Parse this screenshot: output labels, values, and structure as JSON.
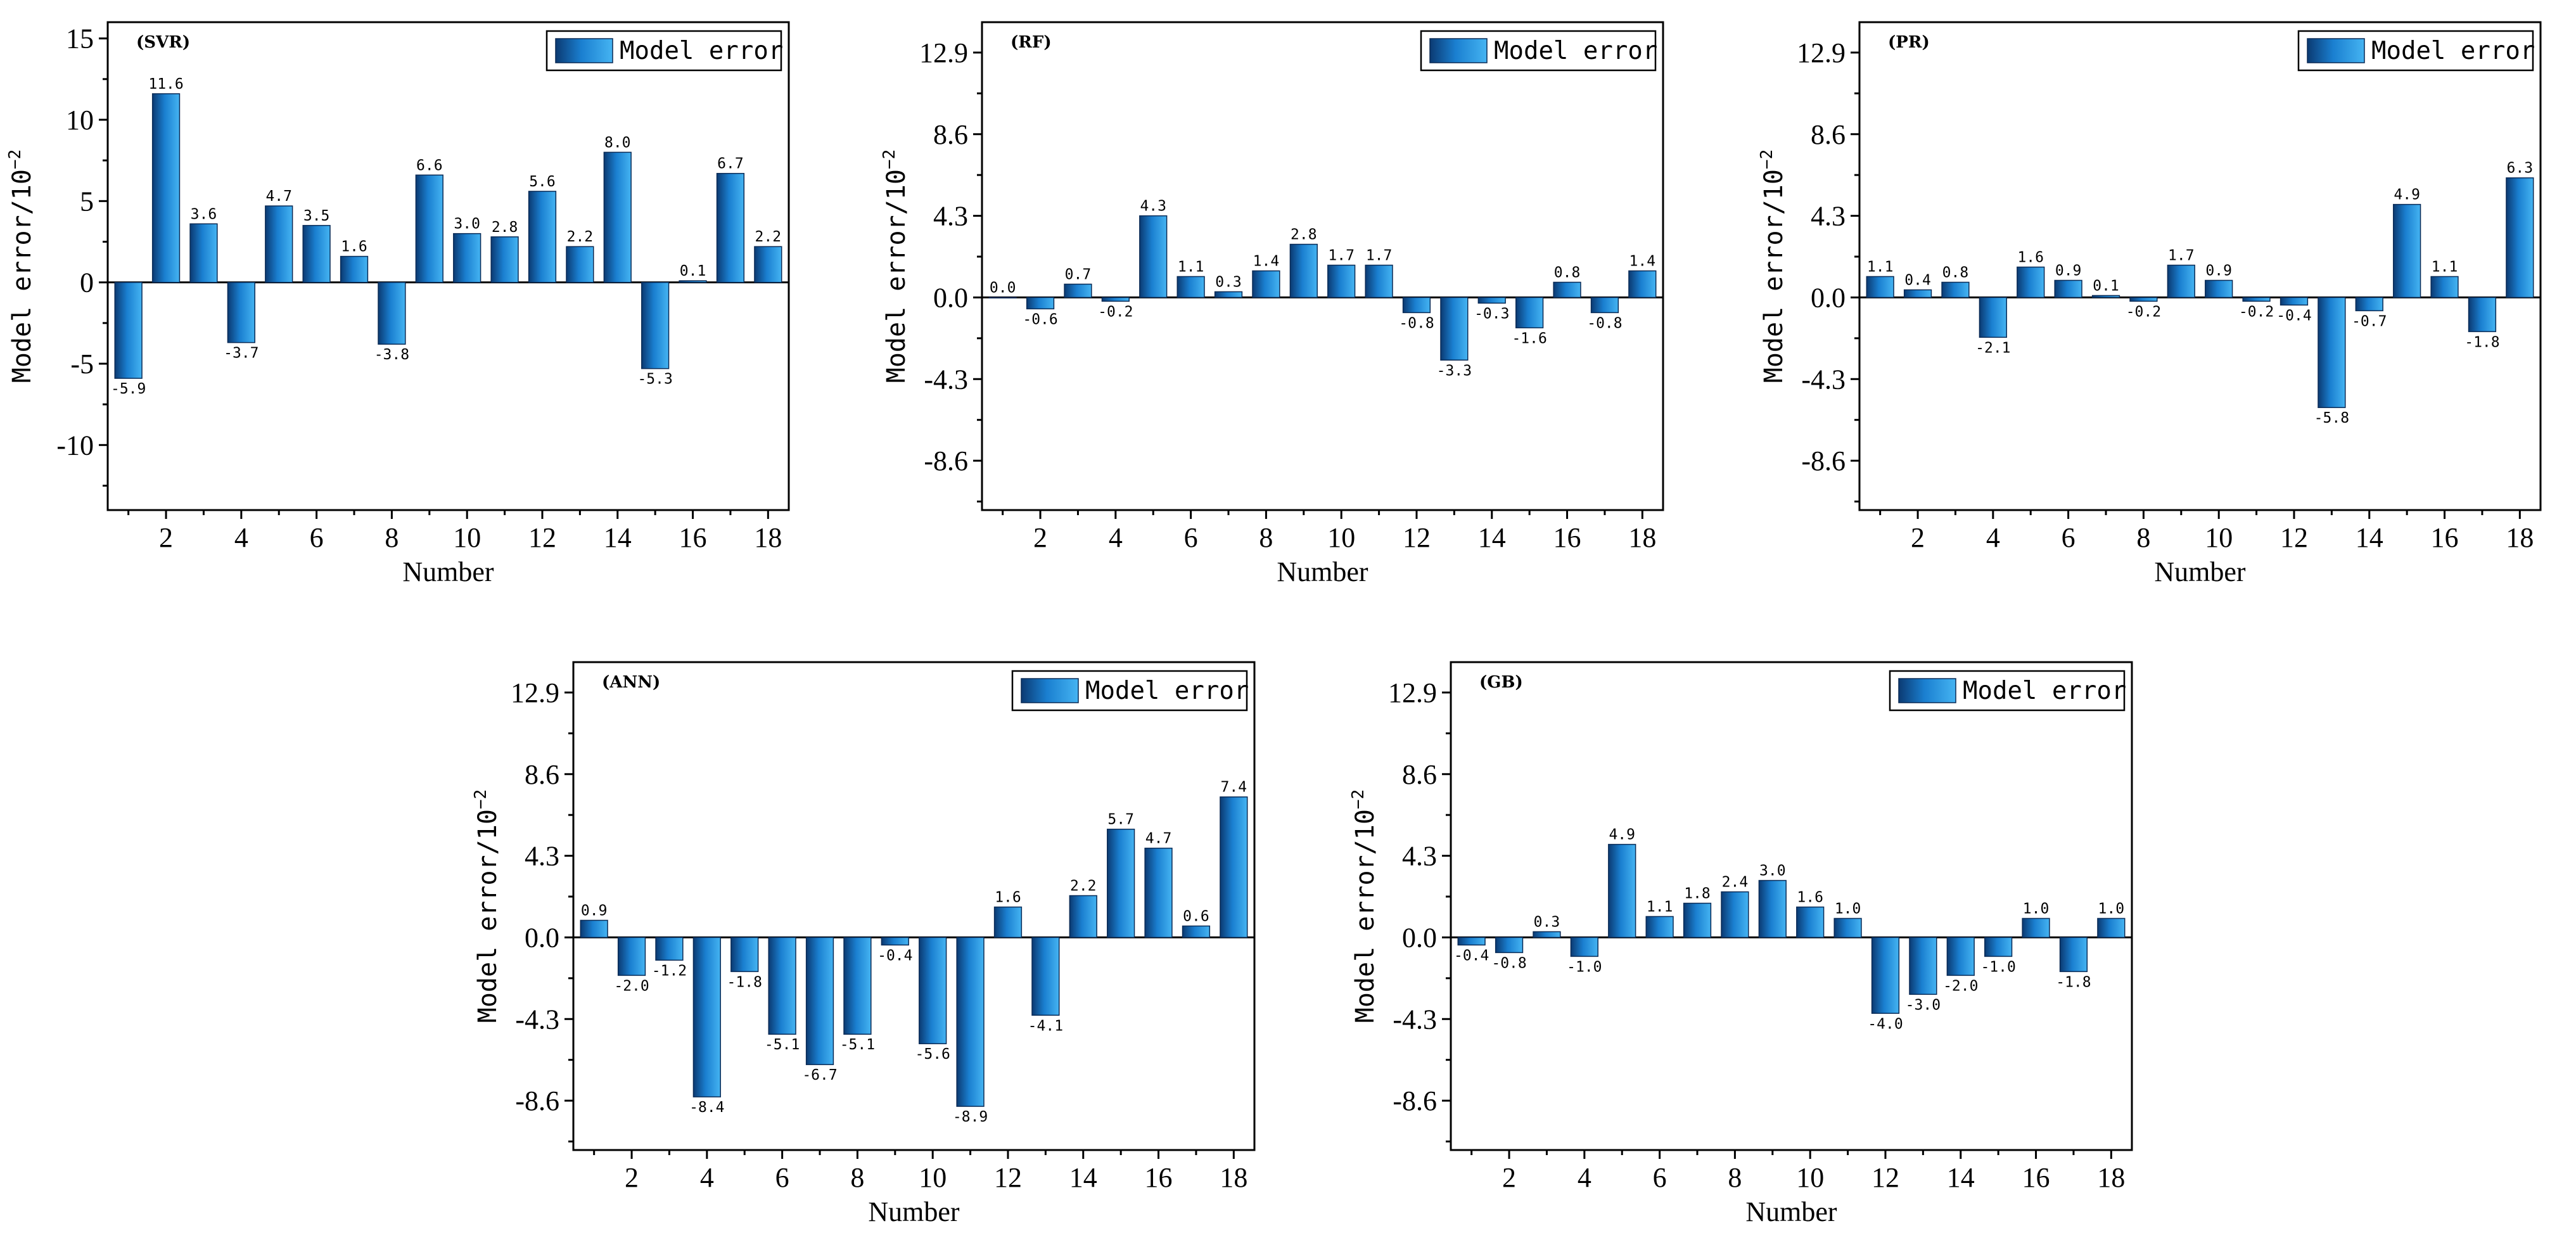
{
  "colors": {
    "bar_dark": "#0b3a72",
    "bar_mid": "#1a7fd0",
    "bar_light": "#45b4f2"
  },
  "chart_data": [
    {
      "type": "bar",
      "panel_label": "(SVR)",
      "legend": "Model error",
      "xlabel": "Number",
      "ylabel": "Model error/10",
      "ylabel_sup": "−2",
      "ylim": [
        -14,
        16
      ],
      "yticks": [
        -10,
        -5,
        0,
        5,
        10,
        15
      ],
      "ytick_labels": [
        "-10",
        "-5",
        "0",
        "5",
        "10",
        "15"
      ],
      "categories": [
        1,
        2,
        3,
        4,
        5,
        6,
        7,
        8,
        9,
        10,
        11,
        12,
        13,
        14,
        15,
        16,
        17,
        18
      ],
      "xtick_labels": [
        "2",
        "4",
        "6",
        "8",
        "10",
        "12",
        "14",
        "16",
        "18"
      ],
      "values": [
        -5.9,
        11.6,
        3.6,
        -3.7,
        4.7,
        3.5,
        1.6,
        -3.8,
        6.6,
        3.0,
        2.8,
        5.6,
        2.2,
        8.0,
        -5.3,
        0.1,
        6.7,
        2.2
      ],
      "labels": [
        "-5.9",
        "11.6",
        "3.6",
        "-3.7",
        "4.7",
        "3.5",
        "1.6",
        "-3.8",
        "6.6",
        "3.0",
        "2.8",
        "5.6",
        "2.2",
        "8.0",
        "-5.3",
        "0.1",
        "6.7",
        "2.2"
      ]
    },
    {
      "type": "bar",
      "panel_label": "(RF)",
      "legend": "Model error",
      "xlabel": "Number",
      "ylabel": "Model error/10",
      "ylabel_sup": "−2",
      "ylim": [
        -11.2,
        14.5
      ],
      "yticks": [
        -8.6,
        -4.3,
        0,
        4.3,
        8.6,
        12.9
      ],
      "ytick_labels": [
        "-8.6",
        "-4.3",
        "0.0",
        "4.3",
        "8.6",
        "12.9"
      ],
      "categories": [
        1,
        2,
        3,
        4,
        5,
        6,
        7,
        8,
        9,
        10,
        11,
        12,
        13,
        14,
        15,
        16,
        17,
        18
      ],
      "xtick_labels": [
        "2",
        "4",
        "6",
        "8",
        "10",
        "12",
        "14",
        "16",
        "18"
      ],
      "values": [
        0.0,
        -0.6,
        0.7,
        -0.2,
        4.3,
        1.1,
        0.3,
        1.4,
        2.8,
        1.7,
        1.7,
        -0.8,
        -3.3,
        -0.3,
        -1.6,
        0.8,
        -0.8,
        1.4
      ],
      "labels": [
        "0.0",
        "-0.6",
        "0.7",
        "-0.2",
        "4.3",
        "1.1",
        "0.3",
        "1.4",
        "2.8",
        "1.7",
        "1.7",
        "-0.8",
        "-3.3",
        "-0.3",
        "-1.6",
        "0.8",
        "-0.8",
        "1.4"
      ]
    },
    {
      "type": "bar",
      "panel_label": "(PR)",
      "legend": "Model error",
      "xlabel": "Number",
      "ylabel": "Model error/10",
      "ylabel_sup": "−2",
      "ylim": [
        -11.2,
        14.5
      ],
      "yticks": [
        -8.6,
        -4.3,
        0,
        4.3,
        8.6,
        12.9
      ],
      "ytick_labels": [
        "-8.6",
        "-4.3",
        "0.0",
        "4.3",
        "8.6",
        "12.9"
      ],
      "categories": [
        1,
        2,
        3,
        4,
        5,
        6,
        7,
        8,
        9,
        10,
        11,
        12,
        13,
        14,
        15,
        16,
        17,
        18
      ],
      "xtick_labels": [
        "2",
        "4",
        "6",
        "8",
        "10",
        "12",
        "14",
        "16",
        "18"
      ],
      "values": [
        1.1,
        0.4,
        0.8,
        -2.1,
        1.6,
        0.9,
        0.1,
        -0.2,
        1.7,
        0.9,
        -0.2,
        -0.4,
        -5.8,
        -0.7,
        4.9,
        1.1,
        -1.8,
        6.3
      ],
      "labels": [
        "1.1",
        "0.4",
        "0.8",
        "-2.1",
        "1.6",
        "0.9",
        "0.1",
        "-0.2",
        "1.7",
        "0.9",
        "-0.2",
        "-0.4",
        "-5.8",
        "-0.7",
        "4.9",
        "1.1",
        "-1.8",
        "6.3"
      ]
    },
    {
      "type": "bar",
      "panel_label": "(ANN)",
      "legend": "Model error",
      "xlabel": "Number",
      "ylabel": "Model error/10",
      "ylabel_sup": "−2",
      "ylim": [
        -11.2,
        14.5
      ],
      "yticks": [
        -8.6,
        -4.3,
        0,
        4.3,
        8.6,
        12.9
      ],
      "ytick_labels": [
        "-8.6",
        "-4.3",
        "0.0",
        "4.3",
        "8.6",
        "12.9"
      ],
      "categories": [
        1,
        2,
        3,
        4,
        5,
        6,
        7,
        8,
        9,
        10,
        11,
        12,
        13,
        14,
        15,
        16,
        17,
        18
      ],
      "xtick_labels": [
        "2",
        "4",
        "6",
        "8",
        "10",
        "12",
        "14",
        "16",
        "18"
      ],
      "values": [
        0.9,
        -2.0,
        -1.2,
        -8.4,
        -1.8,
        -5.1,
        -6.7,
        -5.1,
        -0.4,
        -5.6,
        -8.9,
        1.6,
        -4.1,
        2.2,
        5.7,
        4.7,
        0.6,
        7.4
      ],
      "labels": [
        "0.9",
        "-2.0",
        "-1.2",
        "-8.4",
        "-1.8",
        "-5.1",
        "-6.7",
        "-5.1",
        "-0.4",
        "-5.6",
        "-8.9",
        "1.6",
        "-4.1",
        "2.2",
        "5.7",
        "4.7",
        "0.6",
        "7.4"
      ]
    },
    {
      "type": "bar",
      "panel_label": "(GB)",
      "legend": "Model error",
      "xlabel": "Number",
      "ylabel": "Model error/10",
      "ylabel_sup": "−2",
      "ylim": [
        -11.2,
        14.5
      ],
      "yticks": [
        -8.6,
        -4.3,
        0,
        4.3,
        8.6,
        12.9
      ],
      "ytick_labels": [
        "-8.6",
        "-4.3",
        "0.0",
        "4.3",
        "8.6",
        "12.9"
      ],
      "categories": [
        1,
        2,
        3,
        4,
        5,
        6,
        7,
        8,
        9,
        10,
        11,
        12,
        13,
        14,
        15,
        16,
        17,
        18
      ],
      "xtick_labels": [
        "2",
        "4",
        "6",
        "8",
        "10",
        "12",
        "14",
        "16",
        "18"
      ],
      "values": [
        -0.4,
        -0.8,
        0.3,
        -1.0,
        4.9,
        1.1,
        1.8,
        2.4,
        3.0,
        1.6,
        1.0,
        -4.0,
        -3.0,
        -2.0,
        -1.0,
        1.0,
        -1.8,
        1.0
      ],
      "labels": [
        "-0.4",
        "-0.8",
        "0.3",
        "-1.0",
        "4.9",
        "1.1",
        "1.8",
        "2.4",
        "3.0",
        "1.6",
        "1.0",
        "-4.0",
        "-3.0",
        "-2.0",
        "-1.0",
        "1.0",
        "-1.8",
        "1.0"
      ]
    }
  ]
}
